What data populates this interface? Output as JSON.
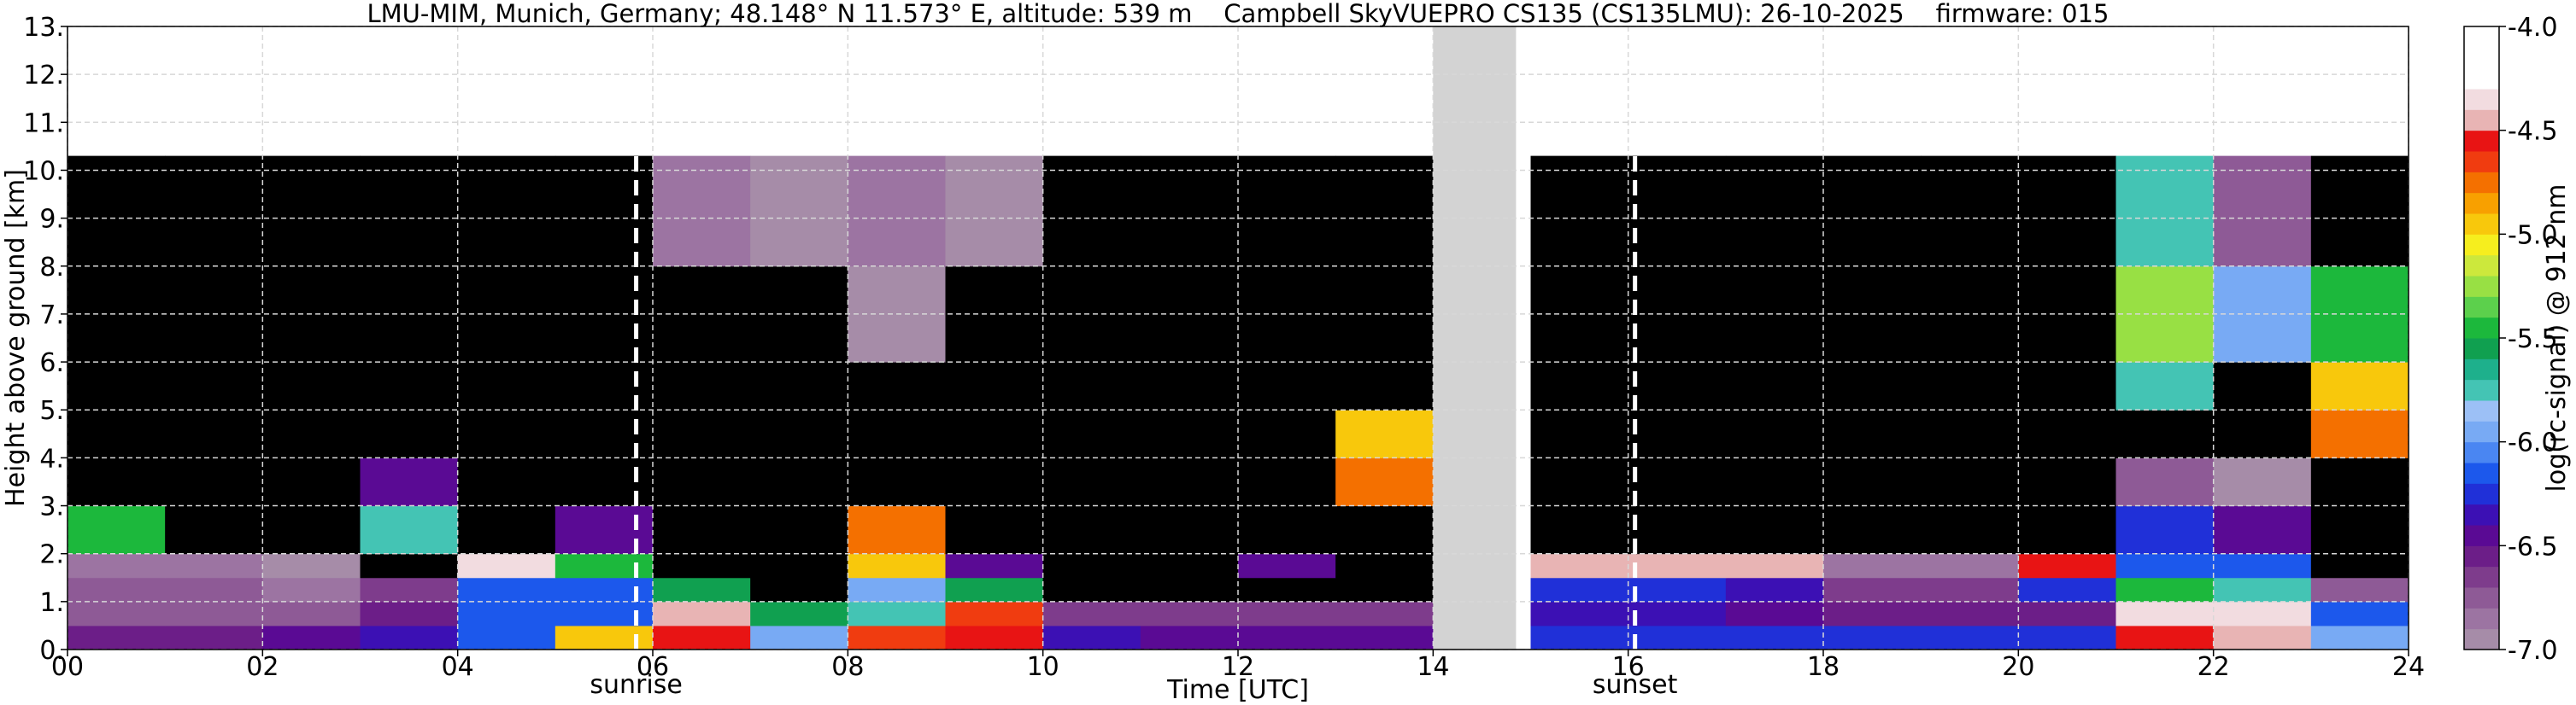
{
  "chart_data": {
    "type": "heatmap",
    "title": "LMU-MIM, Munich, Germany; 48.148° N 11.573° E, altitude: 539 m    Campbell SkyVUEPRO CS135 (CS135LMU): 26-10-2025    firmware: 015",
    "xlabel": "Time [UTC]",
    "ylabel": "Height above ground [km]",
    "colorbar_label": "log(rc-signal) @ 912 nm",
    "xlim": [
      0,
      24
    ],
    "ylim": [
      0,
      13
    ],
    "xticks": [
      {
        "value": 0,
        "label": "00"
      },
      {
        "value": 2,
        "label": "02"
      },
      {
        "value": 4,
        "label": "04"
      },
      {
        "value": 6,
        "label": "06"
      },
      {
        "value": 8,
        "label": "08"
      },
      {
        "value": 10,
        "label": "10"
      },
      {
        "value": 12,
        "label": "12"
      },
      {
        "value": 14,
        "label": "14"
      },
      {
        "value": 16,
        "label": "16"
      },
      {
        "value": 18,
        "label": "18"
      },
      {
        "value": 20,
        "label": "20"
      },
      {
        "value": 22,
        "label": "22"
      },
      {
        "value": 24,
        "label": "24"
      }
    ],
    "yticks": [
      {
        "value": 0,
        "label": "0."
      },
      {
        "value": 1,
        "label": "1."
      },
      {
        "value": 2,
        "label": "2."
      },
      {
        "value": 3,
        "label": "3."
      },
      {
        "value": 4,
        "label": "4."
      },
      {
        "value": 5,
        "label": "5."
      },
      {
        "value": 6,
        "label": "6."
      },
      {
        "value": 7,
        "label": "7."
      },
      {
        "value": 8,
        "label": "8."
      },
      {
        "value": 9,
        "label": "9."
      },
      {
        "value": 10,
        "label": "10."
      },
      {
        "value": 11,
        "label": "11."
      },
      {
        "value": 12,
        "label": "12."
      },
      {
        "value": 13,
        "label": "13."
      }
    ],
    "grid": true,
    "x_bins": [
      0,
      1,
      2,
      3,
      4,
      5,
      6,
      7,
      8,
      9,
      10,
      11,
      12,
      13,
      14,
      15,
      16,
      17,
      18,
      19,
      20,
      21,
      22,
      23,
      24
    ],
    "y_bins": [
      0,
      0.5,
      1,
      1.5,
      2,
      3,
      4,
      5,
      6,
      8,
      10.3
    ],
    "values": [
      [
        -6.6,
        -6.6,
        -6.5,
        -6.4,
        -6.2,
        -5.0,
        -4.6,
        -6.0,
        -4.7,
        -4.6,
        -6.4,
        -6.5,
        -6.5,
        -6.5,
        null,
        -6.3,
        -6.3,
        -6.3,
        -6.3,
        -6.3,
        -6.3,
        -4.6,
        -4.5,
        -6.0
      ],
      [
        -6.8,
        -6.8,
        -6.8,
        -6.6,
        -6.2,
        -6.2,
        -4.5,
        -5.6,
        -5.8,
        -4.7,
        -6.7,
        -6.7,
        -6.7,
        -6.7,
        null,
        -6.4,
        -6.4,
        -6.5,
        -6.6,
        -6.6,
        -6.6,
        -4.4,
        -4.4,
        -6.2
      ],
      [
        -6.8,
        -6.8,
        -6.9,
        -6.7,
        -6.2,
        -6.2,
        -5.6,
        -7.3,
        -6.0,
        -5.6,
        -7.5,
        -7.5,
        -7.5,
        -7.5,
        null,
        -6.3,
        -6.3,
        -6.4,
        -6.7,
        -6.7,
        -6.3,
        -5.5,
        -5.8,
        -6.8
      ],
      [
        -6.9,
        -6.9,
        -7.0,
        -7.2,
        -4.4,
        -5.5,
        -7.2,
        -7.2,
        -5.0,
        -6.5,
        -7.4,
        -7.4,
        -6.5,
        -7.4,
        null,
        -4.5,
        -4.5,
        -4.5,
        -6.9,
        -6.9,
        -4.6,
        -6.2,
        -6.2,
        -7.3
      ],
      [
        -5.5,
        -7.5,
        -7.2,
        -5.8,
        -7.5,
        -6.5,
        -7.4,
        -7.3,
        -4.8,
        -7.4,
        -7.5,
        -7.5,
        -7.5,
        -7.5,
        null,
        -7.6,
        -7.6,
        -7.6,
        -7.6,
        -7.6,
        -7.4,
        -6.3,
        -6.5,
        -7.4
      ],
      [
        -7.7,
        -7.7,
        -7.6,
        -6.5,
        -7.7,
        -7.6,
        -7.4,
        -7.3,
        -7.2,
        -7.4,
        -7.4,
        -7.4,
        -7.4,
        -4.8,
        null,
        -7.6,
        -7.7,
        -7.7,
        -7.7,
        -7.7,
        -7.6,
        -6.8,
        -7.0,
        -7.5
      ],
      [
        -7.7,
        -7.7,
        -7.7,
        -7.7,
        -7.7,
        -7.6,
        -7.3,
        -7.3,
        -7.2,
        -7.3,
        -7.4,
        -7.4,
        -7.4,
        -5.0,
        null,
        -7.7,
        -7.7,
        -7.7,
        -7.7,
        -7.7,
        -7.6,
        -7.2,
        -7.3,
        -4.8
      ],
      [
        -7.7,
        -7.7,
        -7.7,
        -7.7,
        -7.7,
        -7.5,
        -7.2,
        -7.2,
        -7.1,
        -7.2,
        -7.3,
        -7.3,
        -7.4,
        -7.4,
        null,
        -7.7,
        -7.7,
        -7.7,
        -7.7,
        -7.6,
        -7.5,
        -5.8,
        -7.2,
        -5.0
      ],
      [
        -7.6,
        -7.6,
        -7.6,
        -7.6,
        -7.6,
        -7.4,
        -7.1,
        -7.1,
        -7.0,
        -7.1,
        -7.2,
        -7.3,
        -7.3,
        -7.4,
        null,
        -7.6,
        -7.6,
        -7.6,
        -7.6,
        -7.5,
        -7.4,
        -5.3,
        -6.0,
        -5.5
      ],
      [
        -7.4,
        -7.4,
        -7.4,
        -7.4,
        -7.4,
        -7.3,
        -6.9,
        -7.0,
        -6.9,
        -7.0,
        -7.1,
        -7.2,
        -7.2,
        -7.3,
        null,
        -7.5,
        -7.5,
        -7.5,
        -7.5,
        -7.4,
        -7.3,
        -5.8,
        -6.8,
        -7.4
      ]
    ],
    "clim": [
      -7,
      -4
    ],
    "cticks": [
      {
        "value": -7,
        "label": "-7.0"
      },
      -6.5,
      {
        "value": -6,
        "label": "-6.0"
      },
      -5.5,
      {
        "value": -5,
        "label": "-5.0"
      },
      -4.5,
      {
        "value": -4,
        "label": "-4.0"
      }
    ],
    "colors": [
      "#a68ca8",
      "#9c74a2",
      "#8e5a96",
      "#7e3c8c",
      "#6c1e88",
      "#5a0a94",
      "#3c10b4",
      "#2030d8",
      "#1c58ec",
      "#4a86f2",
      "#78aaf4",
      "#9cc0f6",
      "#44c4b4",
      "#1eb08c",
      "#10a050",
      "#1cb83c",
      "#5cd04c",
      "#98e044",
      "#cce83c",
      "#f6ee1e",
      "#f8c80c",
      "#f8a000",
      "#f47000",
      "#f03c10",
      "#e81414",
      "#e8b4b4",
      "#f2dce0",
      "#ffffff",
      "#ffffff",
      "#ffffff"
    ],
    "under_color": "#000000",
    "data_gap": [
      14,
      14.85
    ],
    "gap_color": "#d3d3d3",
    "annotations": [
      {
        "label": "sunrise",
        "x": 5.83
      },
      {
        "label": "sunset",
        "x": 16.07
      }
    ]
  }
}
